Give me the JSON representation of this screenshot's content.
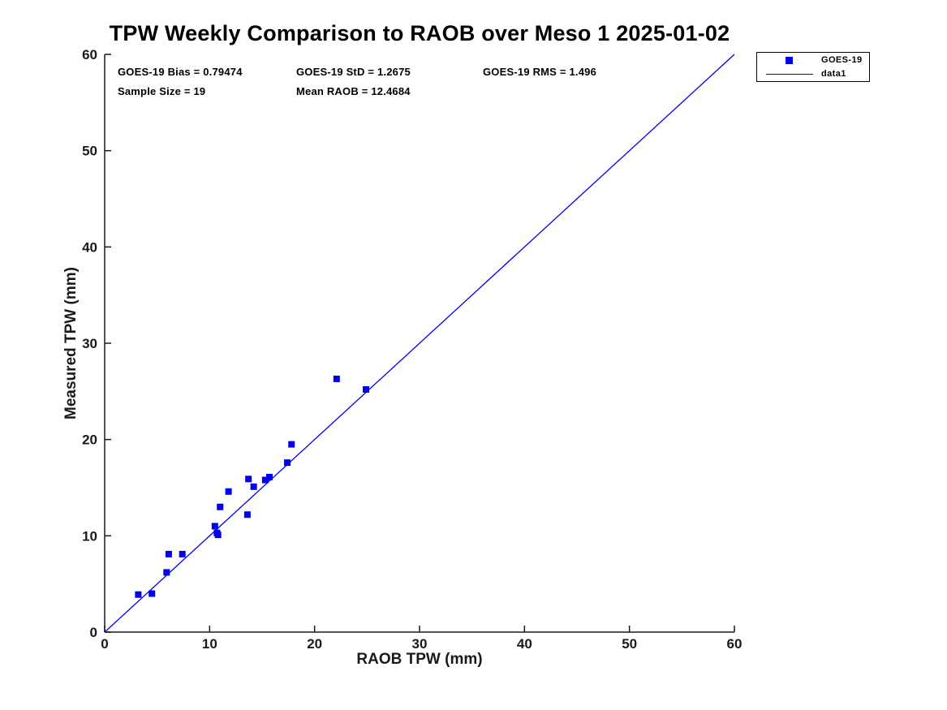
{
  "title": "TPW Weekly Comparison to RAOB over Meso 1 2025-01-02",
  "stats": {
    "bias": "GOES-19 Bias = 0.79474",
    "std": "GOES-19 StD = 1.2675",
    "rms": "GOES-19 RMS = 1.496",
    "sample_size": "Sample Size = 19",
    "mean_raob": "Mean RAOB = 12.4684"
  },
  "colors": {
    "series": "#0000EE",
    "axis": "#1a1a1a",
    "text": "#000000",
    "background": "#ffffff"
  },
  "chart_data": {
    "type": "scatter",
    "title": "TPW Weekly Comparison to RAOB over Meso 1 2025-01-02",
    "xlabel": "RAOB TPW (mm)",
    "ylabel": "Measured TPW (mm)",
    "xlim": [
      0,
      60
    ],
    "ylim": [
      0,
      60
    ],
    "xticks": [
      0,
      10,
      20,
      30,
      40,
      50,
      60
    ],
    "yticks": [
      0,
      10,
      20,
      30,
      40,
      50,
      60
    ],
    "grid": false,
    "box": false,
    "legend": {
      "position": "outside-top-right",
      "entries": [
        {
          "label": "GOES-19",
          "glyph": "filled-square"
        },
        {
          "label": "data1",
          "glyph": "line"
        }
      ]
    },
    "series": [
      {
        "name": "GOES-19",
        "type": "scatter",
        "marker": "filled-square",
        "color": "#0000EE",
        "points": [
          [
            3.2,
            3.9
          ],
          [
            4.5,
            4.0
          ],
          [
            5.9,
            6.2
          ],
          [
            6.1,
            8.1
          ],
          [
            7.4,
            8.1
          ],
          [
            10.5,
            11.0
          ],
          [
            10.7,
            10.3
          ],
          [
            10.8,
            10.1
          ],
          [
            11.0,
            13.0
          ],
          [
            11.8,
            14.6
          ],
          [
            13.6,
            12.2
          ],
          [
            13.7,
            15.9
          ],
          [
            14.2,
            15.1
          ],
          [
            15.3,
            15.8
          ],
          [
            15.7,
            16.1
          ],
          [
            17.4,
            17.6
          ],
          [
            17.8,
            19.5
          ],
          [
            22.1,
            26.3
          ],
          [
            24.9,
            25.2
          ]
        ]
      },
      {
        "name": "data1",
        "type": "line",
        "color": "#0000EE",
        "points": [
          [
            0,
            0
          ],
          [
            60,
            60
          ]
        ]
      }
    ]
  }
}
